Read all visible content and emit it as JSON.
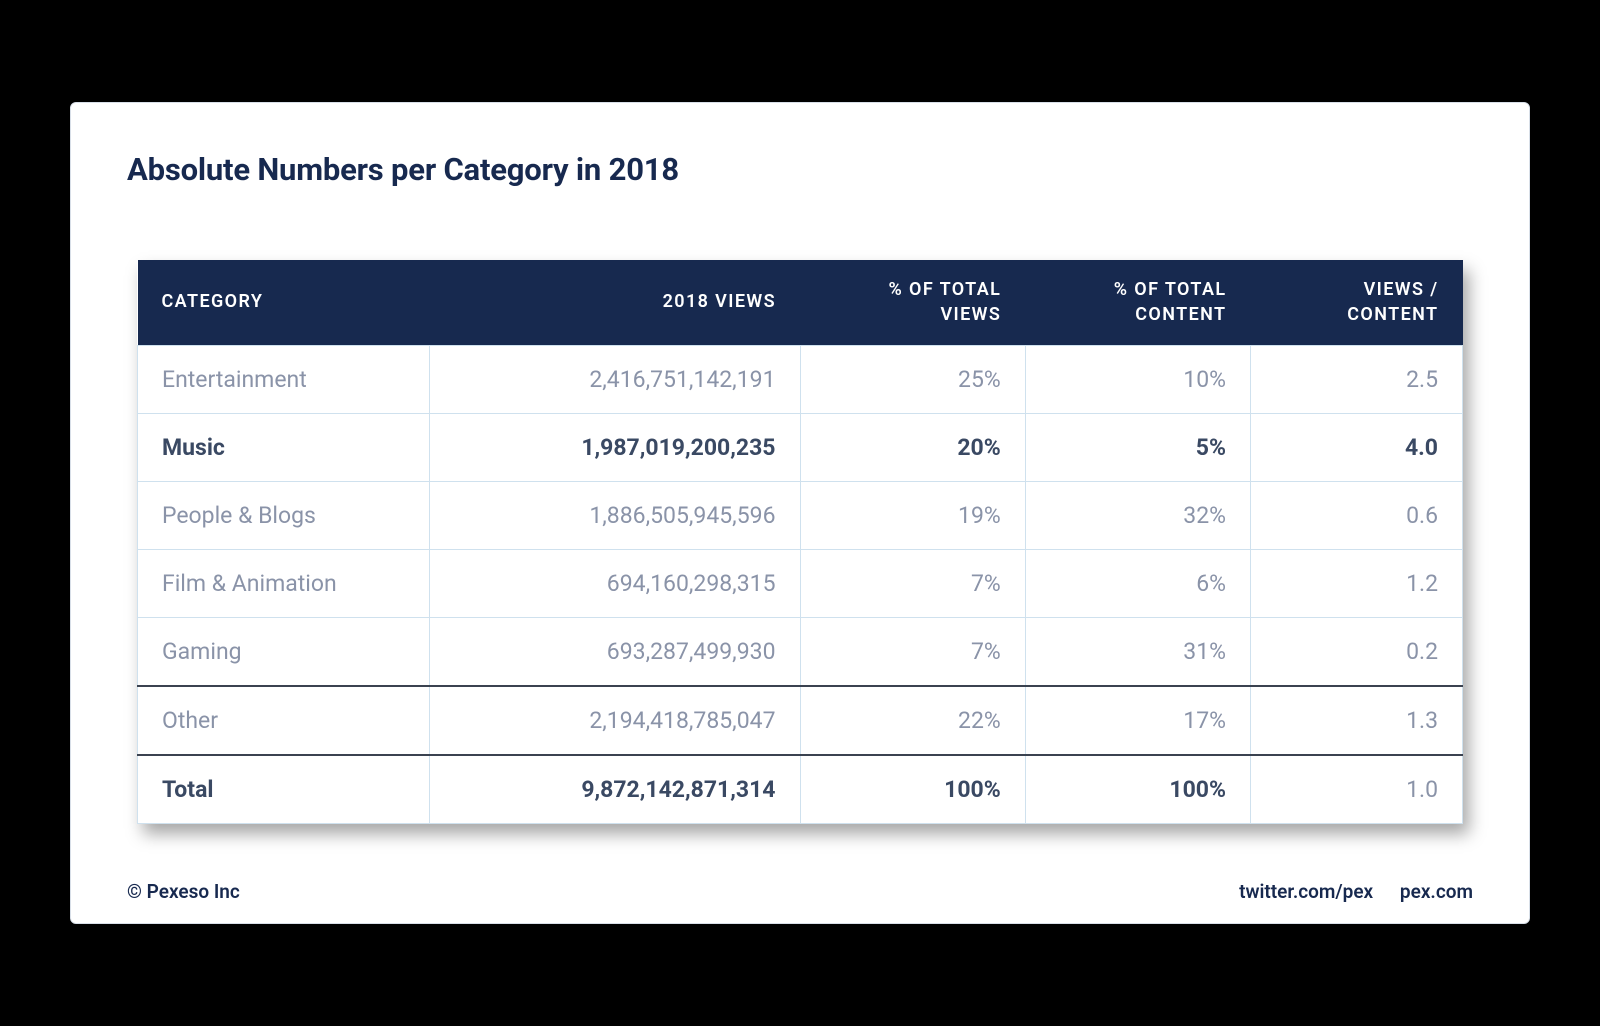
{
  "title": "Absolute Numbers per Category in 2018",
  "table": {
    "type": "table",
    "header_bg": "#17294f",
    "header_text_color": "#ffffff",
    "cell_border_color": "#cfe1ee",
    "body_text_color": "#8a93a8",
    "bold_text_color": "#3a4963",
    "separator_color": "#3b4250",
    "columns": [
      {
        "label": "CATEGORY",
        "align": "left",
        "width_pct": 22
      },
      {
        "label": "2018 VIEWS",
        "align": "right",
        "width_pct": 28
      },
      {
        "label": "% OF TOTAL\nVIEWS",
        "align": "right",
        "width_pct": 17
      },
      {
        "label": "% OF TOTAL\nCONTENT",
        "align": "right",
        "width_pct": 17
      },
      {
        "label": "VIEWS /\nCONTENT",
        "align": "right",
        "width_pct": 16
      }
    ],
    "rows": [
      {
        "cells": [
          "Entertainment",
          "2,416,751,142,191",
          "25%",
          "10%",
          "2.5"
        ],
        "bold": false,
        "sep_above": false
      },
      {
        "cells": [
          "Music",
          "1,987,019,200,235",
          "20%",
          "5%",
          "4.0"
        ],
        "bold": true,
        "sep_above": false
      },
      {
        "cells": [
          "People & Blogs",
          "1,886,505,945,596",
          "19%",
          "32%",
          "0.6"
        ],
        "bold": false,
        "sep_above": false
      },
      {
        "cells": [
          "Film & Animation",
          "694,160,298,315",
          "7%",
          "6%",
          "1.2"
        ],
        "bold": false,
        "sep_above": false
      },
      {
        "cells": [
          "Gaming",
          "693,287,499,930",
          "7%",
          "31%",
          "0.2"
        ],
        "bold": false,
        "sep_above": false
      },
      {
        "cells": [
          "Other",
          "2,194,418,785,047",
          "22%",
          "17%",
          "1.3"
        ],
        "bold": false,
        "sep_above": true
      },
      {
        "cells": [
          "Total",
          "9,872,142,871,314",
          "100%",
          "100%",
          "1.0"
        ],
        "bold": true,
        "sep_above": true,
        "is_total": true
      }
    ]
  },
  "footer": {
    "left": "© Pexeso Inc",
    "right": [
      "twitter.com/pex",
      "pex.com"
    ]
  },
  "card_bg": "#ffffff",
  "page_bg": "#000000"
}
